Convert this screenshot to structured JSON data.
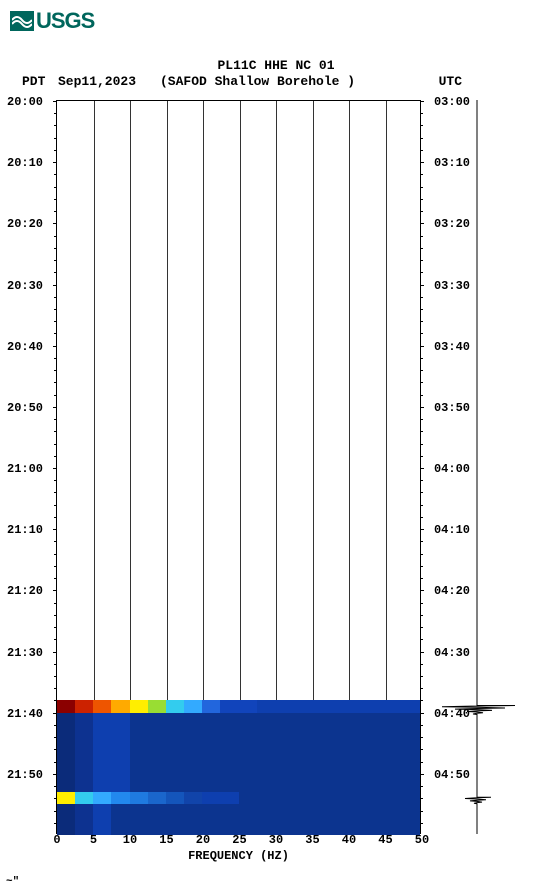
{
  "logo": {
    "text": "USGS"
  },
  "header": {
    "title": "PL11C HHE NC 01",
    "tz_left": "PDT",
    "date": "Sep11,2023",
    "station": "(SAFOD Shallow Borehole )",
    "tz_right": "UTC"
  },
  "chart": {
    "type": "spectrogram",
    "background_color": "#ffffff",
    "grid_color": "#000000",
    "xlabel": "FREQUENCY (HZ)",
    "xlim": [
      0,
      50
    ],
    "xtick_step": 5,
    "xticks": [
      "0",
      "5",
      "10",
      "15",
      "20",
      "25",
      "30",
      "35",
      "40",
      "45",
      "50"
    ],
    "y_left_label": "PDT",
    "y_right_label": "UTC",
    "y_left_ticks": [
      "20:00",
      "20:10",
      "20:20",
      "20:30",
      "20:40",
      "20:50",
      "21:00",
      "21:10",
      "21:20",
      "21:30",
      "21:40",
      "21:50"
    ],
    "y_right_ticks": [
      "03:00",
      "03:10",
      "03:20",
      "03:30",
      "03:40",
      "03:50",
      "04:00",
      "04:10",
      "04:20",
      "04:30",
      "04:40",
      "04:50"
    ],
    "y_minutes_span": 120,
    "minor_tick_step_min": 2,
    "label_fontsize": 12,
    "font_family": "Courier New",
    "spectro_bands": [
      {
        "start_min": 98,
        "end_min": 100,
        "colors": [
          "#8b0000",
          "#cc2200",
          "#ee5500",
          "#ffaa00",
          "#ffee00",
          "#99dd33",
          "#33ccee",
          "#33aaff",
          "#2266dd",
          "#1144bb",
          "#1144bb",
          "#0e3faf",
          "#0e3faf",
          "#0e3faf",
          "#0e3faf",
          "#0e3faf",
          "#0e3faf",
          "#0e3faf",
          "#0e3faf",
          "#0e3faf"
        ]
      },
      {
        "start_min": 100,
        "end_min": 113,
        "colors": [
          "#0b2b7a",
          "#0d3290",
          "#0e3faf",
          "#0e3faf",
          "#0c348f",
          "#0c348f",
          "#0c348f",
          "#0c348f",
          "#0c348f",
          "#0c348f",
          "#0c348f",
          "#0c348f",
          "#0c348f",
          "#0c348f",
          "#0c348f",
          "#0c348f",
          "#0c348f",
          "#0c348f",
          "#0c348f",
          "#0c348f"
        ]
      },
      {
        "start_min": 113,
        "end_min": 115,
        "colors": [
          "#ffee00",
          "#33ccee",
          "#33aaff",
          "#2288ee",
          "#1f7ae0",
          "#1a66cc",
          "#1455bb",
          "#1144aa",
          "#0e3faf",
          "#0e3faf",
          "#0c348f",
          "#0c348f",
          "#0c348f",
          "#0c348f",
          "#0c348f",
          "#0c348f",
          "#0c348f",
          "#0c348f",
          "#0c348f",
          "#0c348f"
        ]
      },
      {
        "start_min": 115,
        "end_min": 120,
        "colors": [
          "#0b2b7a",
          "#0d3290",
          "#0e3faf",
          "#0c348f",
          "#0c348f",
          "#0c348f",
          "#0c348f",
          "#0c348f",
          "#0c348f",
          "#0c348f",
          "#0c348f",
          "#0c348f",
          "#0c348f",
          "#0c348f",
          "#0c348f",
          "#0c348f",
          "#0c348f",
          "#0c348f",
          "#0c348f",
          "#0c348f"
        ]
      }
    ]
  },
  "seismo": {
    "baseline_color": "#000000",
    "events": [
      {
        "min": 99,
        "max_amp": 40,
        "spikes": [
          38,
          -35,
          28,
          -22,
          15,
          -10,
          6,
          -4
        ]
      },
      {
        "min": 114,
        "max_amp": 15,
        "spikes": [
          14,
          -12,
          9,
          -7,
          5,
          -3
        ]
      }
    ]
  },
  "footer": {
    "mark": "~\""
  }
}
